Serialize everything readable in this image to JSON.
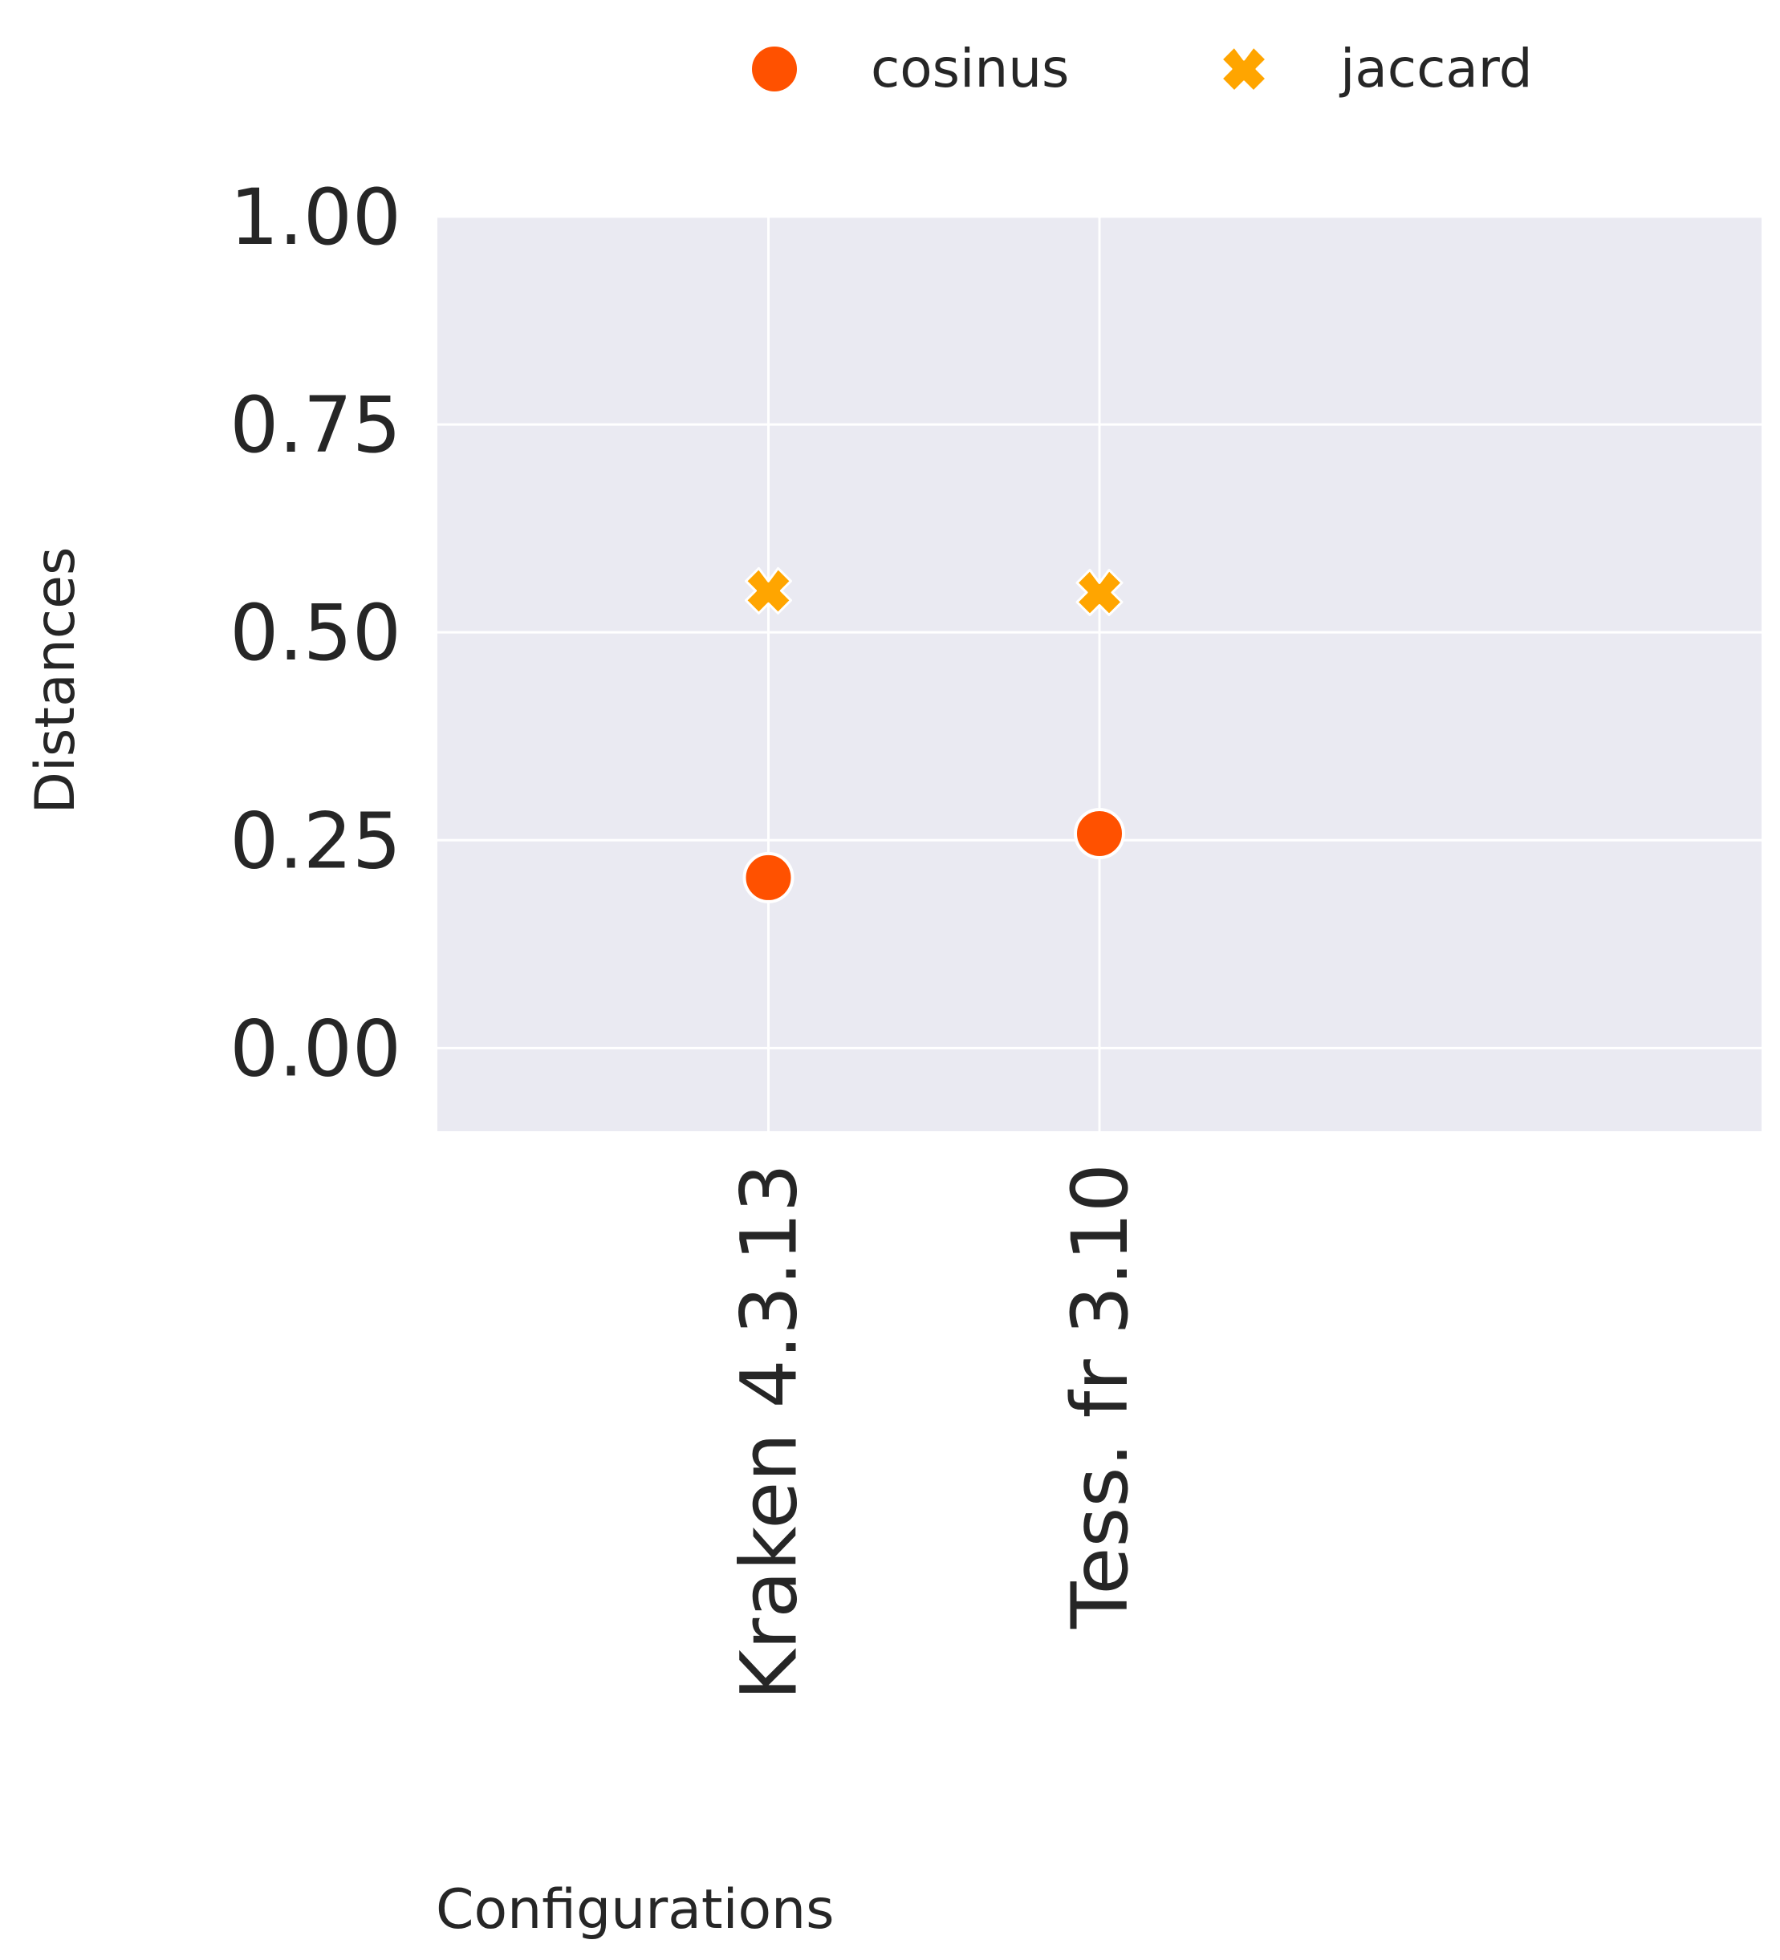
{
  "chart_data": {
    "type": "scatter",
    "title": "",
    "xlabel": "Configurations",
    "ylabel": "Distances",
    "categories": [
      "Kraken 4.3.13",
      "Tess. fr 3.10"
    ],
    "series": [
      {
        "name": "cosinus",
        "marker": "circle",
        "color": "#ff5100",
        "values": [
          0.205,
          0.258
        ]
      },
      {
        "name": "jaccard",
        "marker": "x",
        "color": "#ffa500",
        "values": [
          0.55,
          0.548
        ]
      }
    ],
    "yticks": [
      "0.00",
      "0.25",
      "0.50",
      "0.75",
      "1.00"
    ],
    "ylim": [
      -0.1,
      1.0
    ],
    "grid": true,
    "legend": "top",
    "colors": {
      "plot_background": "#eaeaf2",
      "grid": "#ffffff",
      "text": "#262626"
    }
  }
}
